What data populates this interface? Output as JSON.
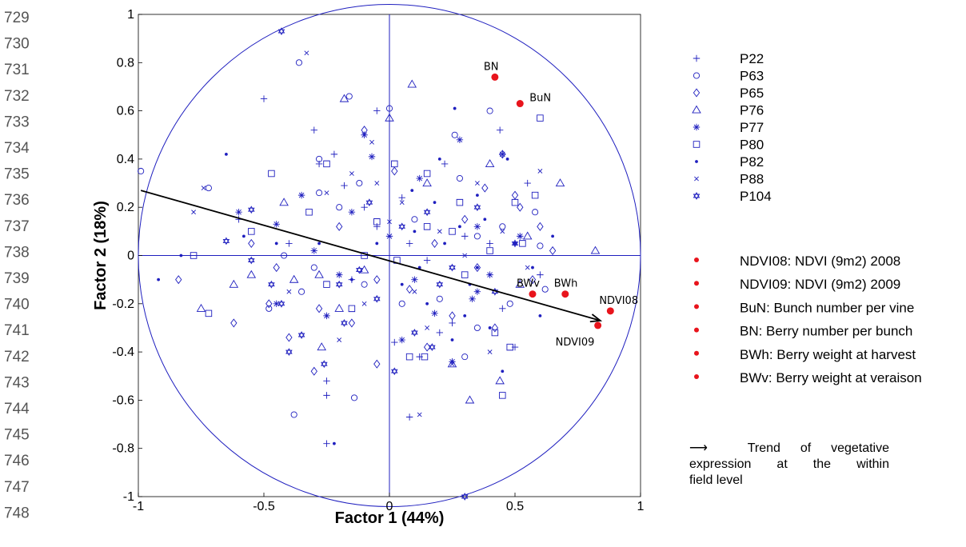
{
  "line_numbers": [
    "729",
    "730",
    "731",
    "732",
    "733",
    "734",
    "735",
    "736",
    "737",
    "738",
    "739",
    "740",
    "741",
    "742",
    "743",
    "744",
    "745",
    "746",
    "747",
    "748"
  ],
  "colors": {
    "accent": "#1f1fbf",
    "variable": "#e8141c",
    "arrow": "#000000"
  },
  "legend": {
    "series": [
      {
        "label": "P22",
        "marker": "plus"
      },
      {
        "label": "P63",
        "marker": "circle"
      },
      {
        "label": "P65",
        "marker": "diamond"
      },
      {
        "label": "P76",
        "marker": "triangle"
      },
      {
        "label": "P77",
        "marker": "asterisk"
      },
      {
        "label": "P80",
        "marker": "square"
      },
      {
        "label": "P82",
        "marker": "dot"
      },
      {
        "label": "P88",
        "marker": "x"
      },
      {
        "label": "P104",
        "marker": "hexagram"
      }
    ],
    "variables": [
      "NDVI08: NDVI (9m2) 2008",
      "NDVI09: NDVI (9m2) 2009",
      "BuN: Bunch number per vine",
      "BN: Berry number per bunch",
      "BWh: Berry weight at harvest",
      "BWv: Berry weight at veraison"
    ],
    "arrow_symbol": "⟶",
    "note_lines": [
      "Trend of vegetative",
      "expression at the within",
      "field level"
    ]
  },
  "chart_data": {
    "type": "scatter",
    "xlabel": "Factor 1 (44%)",
    "ylabel": "Factor 2 (18%)",
    "xlim": [
      -1,
      1
    ],
    "ylim": [
      -1,
      1
    ],
    "xticks": [
      -1,
      -0.5,
      0,
      0.5,
      1
    ],
    "yticks": [
      -1,
      -0.8,
      -0.6,
      -0.4,
      -0.2,
      0,
      0.2,
      0.4,
      0.6,
      0.8,
      1
    ],
    "grid": false,
    "unit_circle": true,
    "legend_position": "right",
    "variables": [
      {
        "name": "BN",
        "x": 0.42,
        "y": 0.74,
        "label_pos": "above"
      },
      {
        "name": "BuN",
        "x": 0.52,
        "y": 0.63,
        "label_pos": "right"
      },
      {
        "name": "BWv",
        "x": 0.57,
        "y": -0.16,
        "label_pos": "above-left"
      },
      {
        "name": "BWh",
        "x": 0.7,
        "y": -0.16,
        "label_pos": "above"
      },
      {
        "name": "NDVI08",
        "x": 0.88,
        "y": -0.23,
        "label_pos": "above"
      },
      {
        "name": "NDVI09",
        "x": 0.83,
        "y": -0.29,
        "label_pos": "below-left"
      }
    ],
    "trend_arrow": {
      "from": [
        -0.99,
        0.27
      ],
      "to": [
        0.84,
        -0.27
      ]
    },
    "series": [
      {
        "name": "P22",
        "points": [
          [
            -0.5,
            0.65
          ],
          [
            -0.3,
            0.52
          ],
          [
            -0.28,
            0.38
          ],
          [
            -0.22,
            0.42
          ],
          [
            -0.18,
            0.29
          ],
          [
            -0.1,
            0.2
          ],
          [
            -0.05,
            0.6
          ],
          [
            0.05,
            0.24
          ],
          [
            0.08,
            0.05
          ],
          [
            0.15,
            -0.02
          ],
          [
            0.22,
            0.38
          ],
          [
            0.3,
            0.08
          ],
          [
            0.4,
            0.05
          ],
          [
            0.44,
            0.52
          ],
          [
            0.55,
            0.3
          ],
          [
            0.6,
            -0.08
          ],
          [
            -0.25,
            -0.52
          ],
          [
            -0.25,
            -0.58
          ],
          [
            -0.25,
            -0.78
          ],
          [
            0.08,
            -0.67
          ],
          [
            0.2,
            -0.32
          ],
          [
            0.35,
            -0.15
          ],
          [
            -0.6,
            0.15
          ],
          [
            -0.4,
            0.05
          ],
          [
            -0.15,
            -0.1
          ],
          [
            0.02,
            -0.36
          ],
          [
            0.12,
            -0.42
          ],
          [
            0.25,
            -0.28
          ],
          [
            0.45,
            -0.22
          ],
          [
            0.5,
            -0.38
          ],
          [
            -0.05,
            0.12
          ]
        ]
      },
      {
        "name": "P63",
        "points": [
          [
            -0.36,
            0.8
          ],
          [
            -0.99,
            0.35
          ],
          [
            -0.72,
            0.28
          ],
          [
            -0.28,
            0.4
          ],
          [
            -0.16,
            0.66
          ],
          [
            0.0,
            0.61
          ],
          [
            0.26,
            0.5
          ],
          [
            0.4,
            0.6
          ],
          [
            0.58,
            0.18
          ],
          [
            0.45,
            0.12
          ],
          [
            0.28,
            0.32
          ],
          [
            -0.28,
            0.26
          ],
          [
            -0.2,
            0.2
          ],
          [
            -0.12,
            0.3
          ],
          [
            0.1,
            0.15
          ],
          [
            0.35,
            0.08
          ],
          [
            0.6,
            0.04
          ],
          [
            -0.42,
            0.0
          ],
          [
            -0.3,
            -0.05
          ],
          [
            -0.1,
            -0.12
          ],
          [
            0.05,
            -0.2
          ],
          [
            0.2,
            -0.18
          ],
          [
            0.35,
            -0.3
          ],
          [
            0.48,
            -0.2
          ],
          [
            0.62,
            -0.14
          ],
          [
            -0.38,
            -0.66
          ],
          [
            -0.14,
            -0.59
          ],
          [
            0.3,
            -0.42
          ],
          [
            -0.48,
            -0.22
          ],
          [
            -0.35,
            -0.15
          ]
        ]
      },
      {
        "name": "P65",
        "points": [
          [
            -0.84,
            -0.1
          ],
          [
            -0.62,
            -0.28
          ],
          [
            -0.48,
            -0.2
          ],
          [
            -0.4,
            -0.34
          ],
          [
            -0.28,
            -0.22
          ],
          [
            -0.15,
            -0.28
          ],
          [
            -0.05,
            -0.1
          ],
          [
            0.08,
            -0.14
          ],
          [
            0.18,
            0.05
          ],
          [
            0.3,
            0.15
          ],
          [
            0.38,
            0.28
          ],
          [
            0.45,
            0.42
          ],
          [
            0.5,
            0.25
          ],
          [
            0.6,
            0.12
          ],
          [
            0.65,
            0.02
          ],
          [
            0.35,
            -0.05
          ],
          [
            0.25,
            -0.25
          ],
          [
            0.15,
            -0.38
          ],
          [
            -0.05,
            -0.45
          ],
          [
            -0.3,
            -0.48
          ],
          [
            -0.45,
            -0.05
          ],
          [
            -0.55,
            0.05
          ],
          [
            -0.2,
            0.12
          ],
          [
            0.02,
            0.35
          ],
          [
            -0.1,
            0.52
          ],
          [
            0.52,
            0.2
          ],
          [
            0.57,
            -0.1
          ],
          [
            0.42,
            -0.3
          ]
        ]
      },
      {
        "name": "P76",
        "points": [
          [
            -0.75,
            -0.22
          ],
          [
            -0.62,
            -0.12
          ],
          [
            -0.55,
            -0.08
          ],
          [
            -0.38,
            -0.1
          ],
          [
            -0.27,
            -0.38
          ],
          [
            -0.2,
            -0.22
          ],
          [
            -0.1,
            -0.06
          ],
          [
            0.0,
            0.57
          ],
          [
            0.09,
            0.71
          ],
          [
            -0.18,
            0.65
          ],
          [
            0.32,
            -0.6
          ],
          [
            0.44,
            -0.52
          ],
          [
            0.52,
            -0.12
          ],
          [
            0.68,
            0.3
          ],
          [
            0.82,
            0.02
          ],
          [
            0.55,
            0.08
          ],
          [
            0.4,
            0.38
          ],
          [
            0.15,
            0.3
          ],
          [
            -0.28,
            -0.08
          ],
          [
            0.25,
            -0.45
          ],
          [
            -0.42,
            0.22
          ]
        ]
      },
      {
        "name": "P77",
        "points": [
          [
            -0.6,
            0.18
          ],
          [
            -0.45,
            0.13
          ],
          [
            -0.3,
            0.02
          ],
          [
            -0.2,
            -0.08
          ],
          [
            -0.1,
            0.5
          ],
          [
            -0.07,
            0.41
          ],
          [
            0.0,
            0.08
          ],
          [
            0.1,
            -0.1
          ],
          [
            0.18,
            -0.24
          ],
          [
            0.25,
            -0.44
          ],
          [
            0.33,
            -0.18
          ],
          [
            0.45,
            0.42
          ],
          [
            0.52,
            0.08
          ],
          [
            -0.25,
            -0.25
          ],
          [
            -0.45,
            -0.2
          ],
          [
            0.12,
            0.32
          ],
          [
            0.28,
            0.48
          ],
          [
            0.35,
            0.12
          ],
          [
            0.05,
            -0.35
          ],
          [
            -0.15,
            0.18
          ],
          [
            -0.35,
            0.25
          ],
          [
            0.4,
            -0.08
          ]
        ]
      },
      {
        "name": "P80",
        "points": [
          [
            -0.72,
            -0.24
          ],
          [
            -0.55,
            0.1
          ],
          [
            -0.47,
            0.34
          ],
          [
            -0.32,
            0.18
          ],
          [
            -0.25,
            0.38
          ],
          [
            -0.05,
            0.14
          ],
          [
            0.02,
            0.38
          ],
          [
            0.08,
            -0.42
          ],
          [
            0.15,
            0.34
          ],
          [
            0.28,
            0.22
          ],
          [
            0.42,
            -0.32
          ],
          [
            0.5,
            0.22
          ],
          [
            0.58,
            0.25
          ],
          [
            0.48,
            -0.38
          ],
          [
            0.4,
            0.02
          ],
          [
            0.3,
            -0.08
          ],
          [
            0.15,
            0.12
          ],
          [
            -0.1,
            0.0
          ],
          [
            -0.25,
            -0.12
          ],
          [
            -0.78,
            0.0
          ],
          [
            0.6,
            0.57
          ],
          [
            0.45,
            -0.58
          ],
          [
            0.14,
            -0.42
          ],
          [
            0.25,
            0.1
          ],
          [
            0.03,
            -0.02
          ],
          [
            0.53,
            0.05
          ],
          [
            -0.15,
            -0.22
          ]
        ]
      },
      {
        "name": "P82",
        "points": [
          [
            -0.92,
            -0.1
          ],
          [
            -0.83,
            0.0
          ],
          [
            -0.65,
            0.42
          ],
          [
            -0.58,
            0.08
          ],
          [
            -0.45,
            0.05
          ],
          [
            -0.22,
            -0.78
          ],
          [
            0.09,
            0.27
          ],
          [
            0.1,
            0.1
          ],
          [
            0.15,
            -0.2
          ],
          [
            0.18,
            0.22
          ],
          [
            0.28,
            0.12
          ],
          [
            0.35,
            -0.05
          ],
          [
            0.4,
            -0.3
          ],
          [
            0.47,
            0.4
          ],
          [
            0.5,
            0.05
          ],
          [
            0.57,
            -0.05
          ],
          [
            0.65,
            0.08
          ],
          [
            0.6,
            -0.25
          ],
          [
            0.35,
            0.25
          ],
          [
            0.25,
            -0.35
          ],
          [
            0.2,
            0.4
          ],
          [
            0.05,
            -0.12
          ],
          [
            -0.05,
            0.05
          ],
          [
            -0.15,
            -0.1
          ],
          [
            0.3,
            -0.25
          ],
          [
            0.38,
            0.15
          ],
          [
            0.12,
            -0.05
          ],
          [
            0.26,
            0.61
          ],
          [
            0.45,
            -0.48
          ],
          [
            -0.28,
            0.05
          ],
          [
            0.22,
            0.05
          ],
          [
            0.32,
            -0.12
          ]
        ]
      },
      {
        "name": "P88",
        "points": [
          [
            -0.74,
            0.28
          ],
          [
            -0.78,
            0.18
          ],
          [
            -0.25,
            0.26
          ],
          [
            -0.15,
            0.34
          ],
          [
            -0.07,
            0.47
          ],
          [
            0.0,
            0.14
          ],
          [
            0.05,
            0.22
          ],
          [
            0.1,
            -0.15
          ],
          [
            0.15,
            -0.3
          ],
          [
            0.25,
            -0.45
          ],
          [
            0.35,
            -0.15
          ],
          [
            0.45,
            0.1
          ],
          [
            0.55,
            -0.05
          ],
          [
            0.6,
            0.35
          ],
          [
            -0.2,
            -0.35
          ],
          [
            -0.4,
            -0.15
          ],
          [
            0.12,
            -0.66
          ],
          [
            -0.33,
            0.84
          ],
          [
            -0.1,
            -0.2
          ],
          [
            0.2,
            0.1
          ],
          [
            0.35,
            0.3
          ],
          [
            0.4,
            -0.4
          ],
          [
            -0.05,
            0.3
          ],
          [
            0.3,
            0.0
          ]
        ]
      },
      {
        "name": "P104",
        "points": [
          [
            -0.43,
            0.93
          ],
          [
            -0.55,
            0.19
          ],
          [
            -0.55,
            -0.02
          ],
          [
            -0.47,
            -0.12
          ],
          [
            -0.43,
            -0.2
          ],
          [
            -0.35,
            -0.33
          ],
          [
            -0.26,
            -0.45
          ],
          [
            -0.18,
            -0.28
          ],
          [
            -0.12,
            -0.06
          ],
          [
            -0.05,
            -0.18
          ],
          [
            0.05,
            0.12
          ],
          [
            0.1,
            -0.32
          ],
          [
            0.17,
            -0.38
          ],
          [
            0.25,
            -0.05
          ],
          [
            0.35,
            0.2
          ],
          [
            0.42,
            -0.15
          ],
          [
            0.5,
            0.05
          ],
          [
            0.3,
            -1.0
          ],
          [
            -0.65,
            0.06
          ],
          [
            -0.4,
            -0.4
          ],
          [
            0.02,
            -0.48
          ],
          [
            0.15,
            0.18
          ],
          [
            -0.08,
            0.22
          ],
          [
            0.2,
            -0.12
          ],
          [
            -0.2,
            -0.12
          ]
        ]
      }
    ]
  }
}
